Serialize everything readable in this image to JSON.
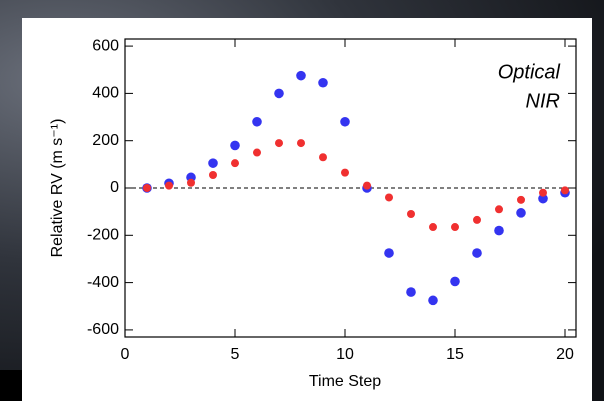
{
  "chart_data": {
    "type": "scatter",
    "x_label": "Time Step",
    "y_label": "Relative RV (m s⁻¹)",
    "x": [
      1,
      2,
      3,
      4,
      5,
      6,
      7,
      8,
      9,
      10,
      11,
      12,
      13,
      14,
      15,
      16,
      17,
      18,
      19,
      20
    ],
    "series": [
      {
        "name": "Optical",
        "color": "#3434f0",
        "values": [
          0,
          20,
          45,
          105,
          180,
          280,
          400,
          475,
          445,
          280,
          0,
          -275,
          -440,
          -475,
          -395,
          -275,
          -180,
          -105,
          -45,
          -20
        ]
      },
      {
        "name": "NIR",
        "color": "#f03030",
        "values": [
          0,
          10,
          22,
          55,
          105,
          150,
          190,
          190,
          130,
          65,
          10,
          -40,
          -110,
          -165,
          -165,
          -135,
          -90,
          -50,
          -20,
          -10
        ]
      }
    ],
    "xlim": [
      0,
      20.5
    ],
    "xticks": [
      0,
      5,
      10,
      15,
      20
    ],
    "ylim": [
      -630,
      630
    ],
    "yticks": [
      -600,
      -400,
      -200,
      0,
      200,
      400,
      600
    ],
    "legend": "upper right",
    "zero_line": true
  }
}
